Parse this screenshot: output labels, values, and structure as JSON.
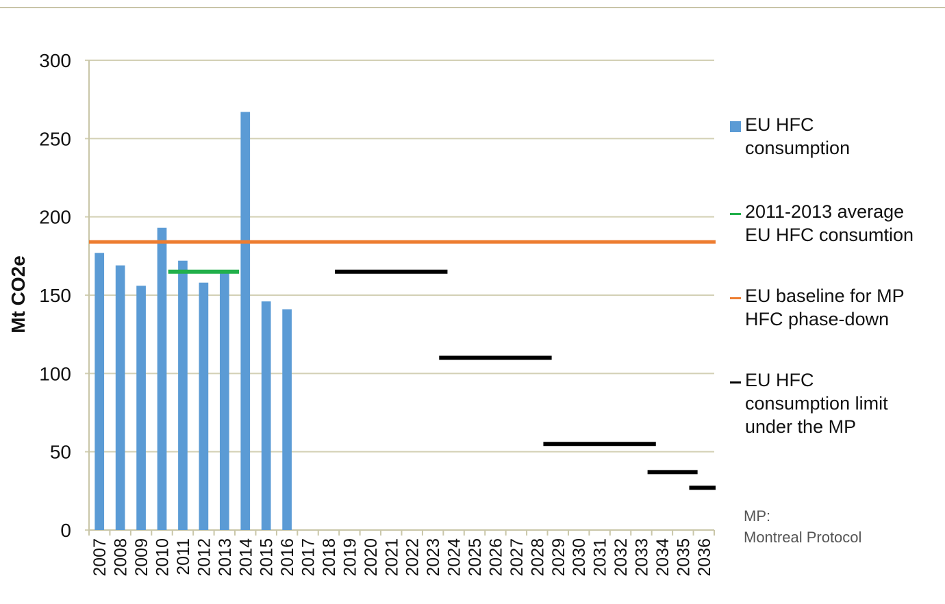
{
  "chart_data": {
    "type": "bar",
    "ylabel": "Mt CO2e",
    "ylim": [
      0,
      300
    ],
    "yticks": [
      0,
      50,
      100,
      150,
      200,
      250,
      300
    ],
    "grid": true,
    "legend_position": "right",
    "categories": [
      "2007",
      "2008",
      "2009",
      "2010",
      "2011",
      "2012",
      "2013",
      "2014",
      "2015",
      "2016",
      "2017",
      "2018",
      "2019",
      "2020",
      "2021",
      "2022",
      "2023",
      "2024",
      "2025",
      "2026",
      "2027",
      "2028",
      "2029",
      "2030",
      "2031",
      "2032",
      "2033",
      "2034",
      "2035",
      "2036"
    ],
    "series": [
      {
        "name": "EU HFC\nconsumption",
        "kind": "bar",
        "color": "#5b9bd5",
        "values": [
          177,
          169,
          156,
          193,
          172,
          158,
          165,
          267,
          146,
          141,
          null,
          null,
          null,
          null,
          null,
          null,
          null,
          null,
          null,
          null,
          null,
          null,
          null,
          null,
          null,
          null,
          null,
          null,
          null,
          null
        ]
      },
      {
        "name": "2011-2013 average\nEU HFC consumtion",
        "kind": "segment",
        "color": "#22b04b",
        "segments": [
          {
            "from": "2011",
            "to": "2013",
            "value": 165
          }
        ]
      },
      {
        "name": "EU baseline for MP\nHFC phase-down",
        "kind": "hline",
        "color": "#ed7d31",
        "value": 184
      },
      {
        "name": "EU  HFC\nconsumption limit\nunder the MP",
        "kind": "segment",
        "color": "#000000",
        "segments": [
          {
            "from": "2019",
            "to": "2023",
            "value": 165
          },
          {
            "from": "2024",
            "to": "2028",
            "value": 110
          },
          {
            "from": "2029",
            "to": "2033",
            "value": 55
          },
          {
            "from": "2034",
            "to": "2035",
            "value": 37
          },
          {
            "from": "2036",
            "to": "2036",
            "value": 27
          }
        ]
      }
    ]
  },
  "footnote": "MP:\nMontreal Protocol"
}
